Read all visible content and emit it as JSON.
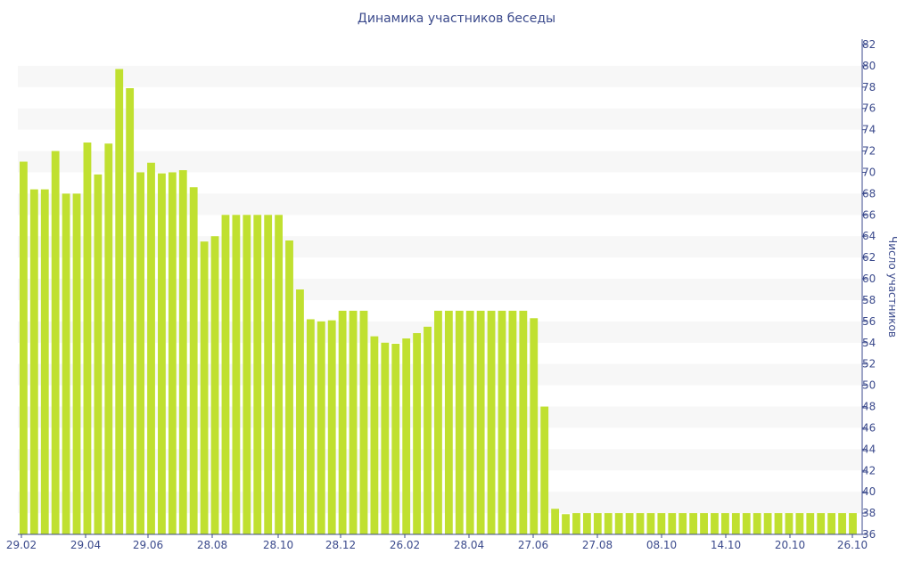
{
  "chart_data": {
    "type": "bar",
    "title": "Динамика участников беседы",
    "xlabel": "",
    "ylabel": "Число участников",
    "ylim": [
      36,
      82
    ],
    "y_tick_step": 2,
    "grid": "alternating horizontal bands",
    "colors": {
      "bar": "#c0e030",
      "band": "#f7f7f7",
      "text": "#3b4a8c",
      "axis": "#3b4a8c"
    },
    "x_tick_labels": [
      "29.02",
      "29.04",
      "29.06",
      "28.08",
      "28.10",
      "28.12",
      "26.02",
      "28.04",
      "27.06",
      "27.08",
      "08.10",
      "14.10",
      "20.10",
      "26.10"
    ],
    "values": [
      71,
      68.4,
      68.4,
      72,
      68,
      68,
      72.8,
      69.8,
      72.7,
      79.7,
      77.9,
      70,
      70.9,
      69.9,
      70,
      70.2,
      68.6,
      63.5,
      64,
      66,
      66,
      66,
      66,
      66,
      66,
      63.6,
      59,
      56.2,
      56,
      56.1,
      57,
      57,
      57,
      54.6,
      54,
      53.9,
      54.4,
      54.9,
      55.5,
      57,
      57,
      57,
      57,
      57,
      57,
      57,
      57,
      57,
      56.3,
      48,
      38.4,
      37.9,
      38,
      38,
      38,
      38,
      38,
      38,
      38,
      38,
      38,
      38,
      38,
      38,
      38,
      38,
      38,
      38,
      38,
      38,
      38,
      38,
      38,
      38,
      38,
      38,
      38,
      38,
      38
    ]
  }
}
